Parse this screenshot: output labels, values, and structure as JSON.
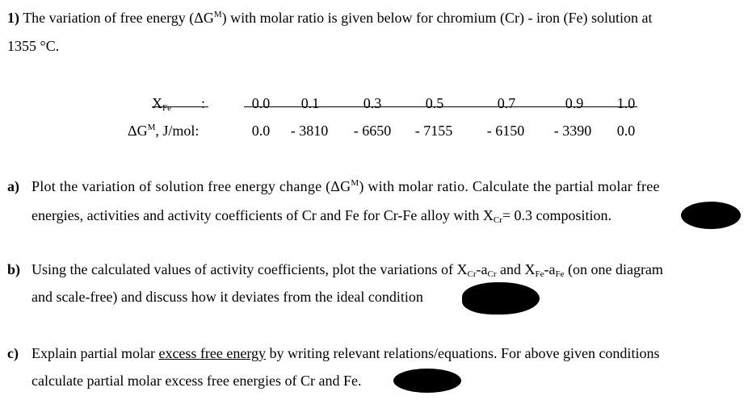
{
  "question": {
    "number": "1)",
    "intro_a": "The variation of free energy (ΔG",
    "intro_sup": "M",
    "intro_b": ") with molar ratio is given below for chromium (Cr) - iron (Fe) solution at",
    "intro_line2": "1355 °C."
  },
  "table": {
    "row1_label_main": "X",
    "row1_label_sub": "Fe",
    "row1_colon": ":",
    "row2_label_a": "ΔG",
    "row2_label_sup": "M",
    "row2_label_b": ", J/mol:",
    "x_values": [
      "0.0",
      "0.1",
      "0.3",
      "0.5",
      "0.7",
      "0.9",
      "1.0"
    ],
    "g_values": [
      "0.0",
      "- 3810",
      "- 6650",
      "- 7155",
      "- 6150",
      "- 3390",
      "0.0"
    ]
  },
  "part_a": {
    "letter": "a)",
    "line1_a": "Plot the variation of solution free energy change (ΔG",
    "line1_sup": "M",
    "line1_b": ") with molar ratio. Calculate the partial molar free",
    "line2_a": "energies, activities and activity coefficients of Cr and Fe for Cr-Fe alloy with X",
    "line2_sub": "Cr",
    "line2_b": "= 0.3 composition."
  },
  "part_b": {
    "letter": "b)",
    "line1_a": "Using the calculated values of activity coefficients, plot the variations of X",
    "line1_sub1": "Cr",
    "line1_b": "-a",
    "line1_sub2": "Cr",
    "line1_c": " and X",
    "line1_sub3": "Fe",
    "line1_d": "-a",
    "line1_sub4": "Fe",
    "line1_e": " (on one diagram",
    "line2": "and scale-free) and discuss how it deviates from the ideal condition"
  },
  "part_c": {
    "letter": "c)",
    "line1_a": "Explain partial molar ",
    "line1_u": "excess free energy",
    "line1_b": " by writing relevant relations/equations. For above given conditions",
    "line2": "calculate partial molar excess free energies of Cr and Fe."
  }
}
